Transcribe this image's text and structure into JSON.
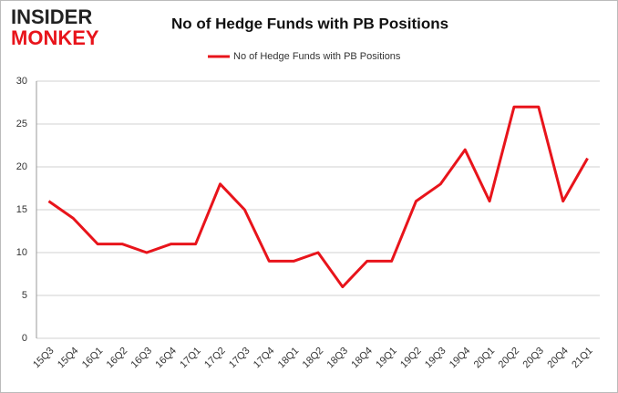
{
  "logo": {
    "top": "INSIDER",
    "bottom": "MONKEY"
  },
  "chart_data": {
    "type": "line",
    "title": "No of Hedge Funds with PB Positions",
    "categories": [
      "15Q3",
      "15Q4",
      "16Q1",
      "16Q2",
      "16Q3",
      "16Q4",
      "17Q1",
      "17Q2",
      "17Q3",
      "17Q4",
      "18Q1",
      "18Q2",
      "18Q3",
      "18Q4",
      "19Q1",
      "19Q2",
      "19Q3",
      "19Q4",
      "20Q1",
      "20Q2",
      "20Q3",
      "20Q4",
      "21Q1"
    ],
    "series": [
      {
        "name": "No of Hedge Funds with PB Positions",
        "color": "#e8141b",
        "values": [
          16,
          14,
          11,
          11,
          10,
          11,
          11,
          18,
          15,
          9,
          9,
          10,
          6,
          9,
          9,
          16,
          18,
          22,
          16,
          27,
          27,
          16,
          21
        ]
      }
    ],
    "ylim": [
      0,
      30
    ],
    "yticks": [
      0,
      5,
      10,
      15,
      20,
      25,
      30
    ],
    "grid": true,
    "legend": "top"
  }
}
